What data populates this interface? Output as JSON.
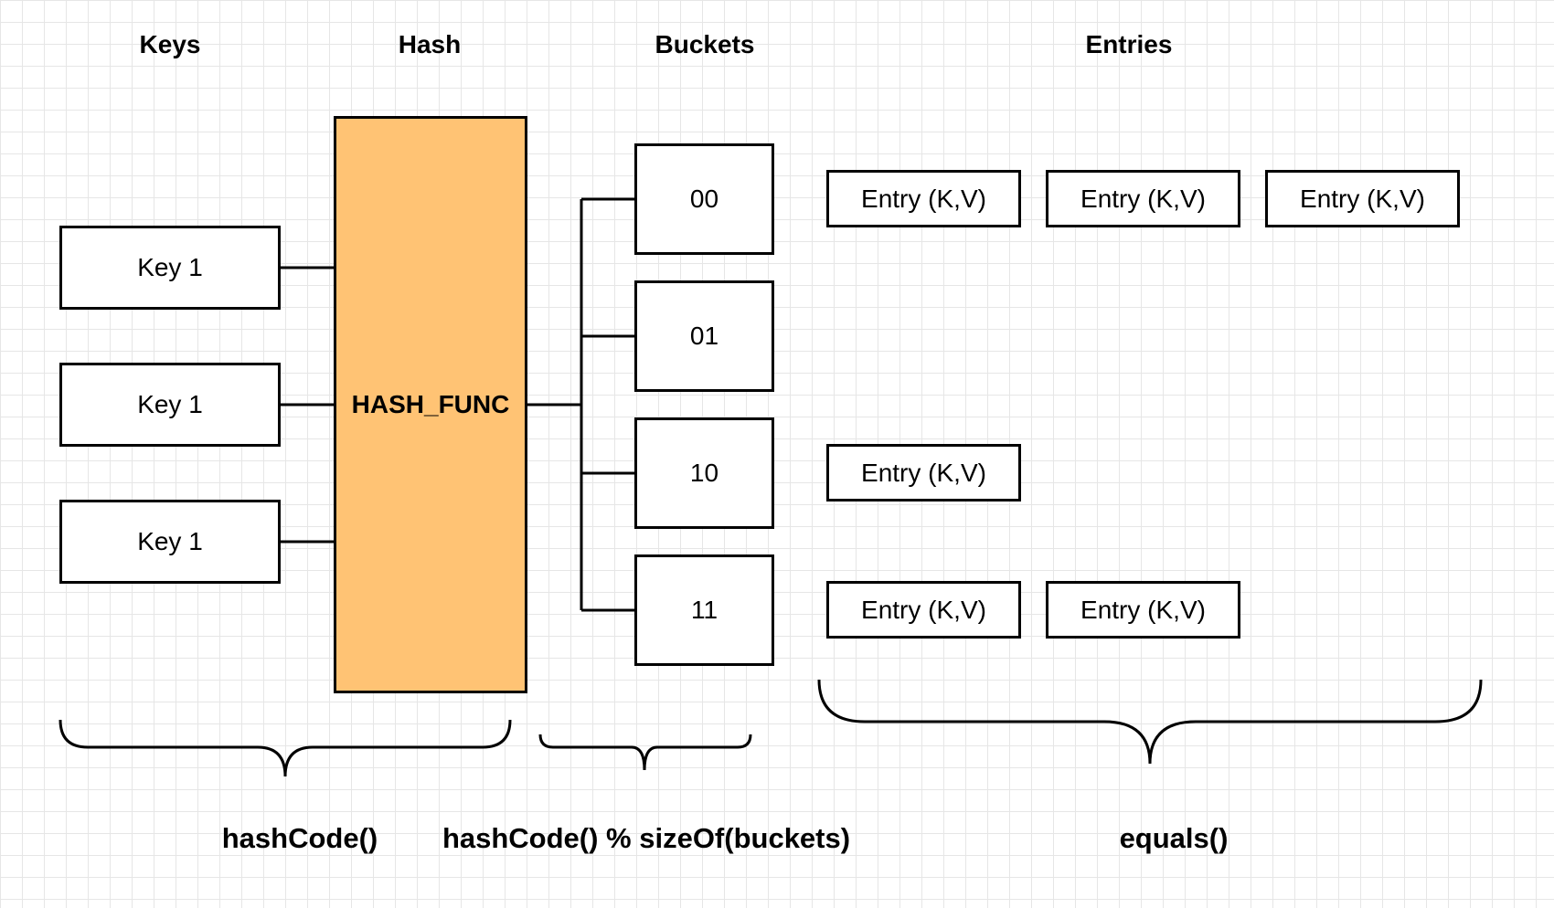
{
  "headers": {
    "keys": "Keys",
    "hash": "Hash",
    "buckets": "Buckets",
    "entries": "Entries"
  },
  "keys": [
    "Key 1",
    "Key 1",
    "Key 1"
  ],
  "hash_function": {
    "label": "HASH_FUNC",
    "fill_color": "#ffc374"
  },
  "buckets": [
    {
      "label": "00",
      "entries": [
        "Entry (K,V)",
        "Entry (K,V)",
        "Entry (K,V)"
      ]
    },
    {
      "label": "01",
      "entries": []
    },
    {
      "label": "10",
      "entries": [
        "Entry (K,V)"
      ]
    },
    {
      "label": "11",
      "entries": [
        "Entry (K,V)",
        "Entry (K,V)"
      ]
    }
  ],
  "captions": {
    "hash_code": "hashCode()",
    "bucket_index": "hashCode() % sizeOf(buckets)",
    "equals": "equals()"
  }
}
